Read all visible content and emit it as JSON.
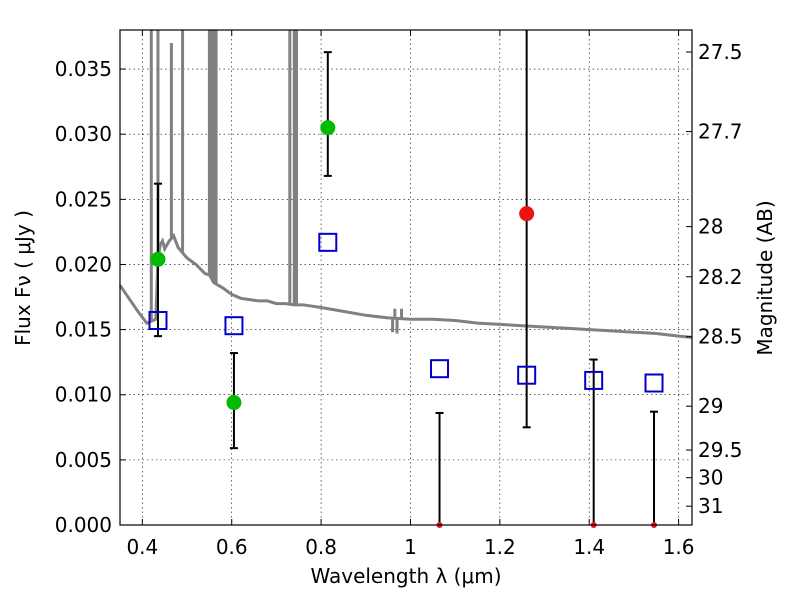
{
  "chart_data": {
    "type": "scatter",
    "xlabel": "Wavelength  λ (μm)",
    "ylabel": "Flux  Fν  ( μJy )",
    "y2label": "Magnitude (AB)",
    "xlim": [
      0.35,
      1.63
    ],
    "ylim": [
      0.0,
      0.038
    ],
    "grid": true,
    "xticks": [
      0.4,
      0.6,
      0.8,
      1.0,
      1.2,
      1.4,
      1.6
    ],
    "xtick_labels": [
      "0.4",
      "0.6",
      "0.8",
      "1",
      "1.2",
      "1.4",
      "1.6"
    ],
    "yticks": [
      0.0,
      0.005,
      0.01,
      0.015,
      0.02,
      0.025,
      0.03,
      0.035
    ],
    "ytick_labels": [
      "0.000",
      "0.005",
      "0.010",
      "0.015",
      "0.020",
      "0.025",
      "0.030",
      "0.035"
    ],
    "y2ticks": [
      27.5,
      27.7,
      28,
      28.2,
      28.5,
      29,
      29.5,
      30,
      31
    ],
    "y2tick_labels": [
      "27.5",
      "27.7",
      "28",
      "28.2",
      "28.5",
      "29",
      "29.5",
      "30",
      "31"
    ],
    "series": [
      {
        "kind": "template_sed",
        "color": "#808080",
        "x": [
          0.35,
          0.37,
          0.39,
          0.41,
          0.43,
          0.435,
          0.44,
          0.445,
          0.45,
          0.46,
          0.47,
          0.48,
          0.5,
          0.52,
          0.54,
          0.55,
          0.56,
          0.58,
          0.6,
          0.62,
          0.64,
          0.66,
          0.68,
          0.7,
          0.72,
          0.74,
          0.76,
          0.78,
          0.8,
          0.85,
          0.9,
          0.95,
          1.0,
          1.05,
          1.1,
          1.15,
          1.2,
          1.25,
          1.3,
          1.35,
          1.4,
          1.45,
          1.5,
          1.55,
          1.6,
          1.63
        ],
        "y": [
          0.0184,
          0.0174,
          0.0164,
          0.0155,
          0.0158,
          0.0205,
          0.0215,
          0.0218,
          0.0212,
          0.0218,
          0.0222,
          0.0213,
          0.0205,
          0.02,
          0.0193,
          0.0192,
          0.0186,
          0.0182,
          0.0177,
          0.0174,
          0.0173,
          0.0172,
          0.0172,
          0.017,
          0.017,
          0.0169,
          0.0169,
          0.0168,
          0.0167,
          0.0164,
          0.0161,
          0.0159,
          0.0158,
          0.0158,
          0.0157,
          0.0155,
          0.0154,
          0.0153,
          0.0152,
          0.0151,
          0.015,
          0.0149,
          0.0148,
          0.0147,
          0.0145,
          0.0144
        ]
      },
      {
        "kind": "emission_lines",
        "color": "#808080",
        "x": [
          0.42,
          0.435,
          0.465,
          0.49,
          0.55,
          0.555,
          0.56,
          0.565,
          0.73,
          0.74,
          0.745,
          0.96,
          0.965,
          0.97,
          0.98
        ],
        "y": [
          0.038,
          0.038,
          0.037,
          0.038,
          0.038,
          0.038,
          0.038,
          0.038,
          0.038,
          0.038,
          0.038,
          0.0148,
          0.0166,
          0.0147,
          0.0166
        ]
      },
      {
        "kind": "model_photometry",
        "color": "#0000cc",
        "marker": "open-square",
        "x": [
          0.435,
          0.605,
          0.815,
          1.065,
          1.26,
          1.41,
          1.545
        ],
        "y": [
          0.0157,
          0.0153,
          0.0217,
          0.012,
          0.0115,
          0.0111,
          0.0109
        ]
      },
      {
        "kind": "observed_detection",
        "color": "#00bb00",
        "marker": "filled-circle",
        "x": [
          0.435,
          0.605,
          0.815
        ],
        "y": [
          0.0204,
          0.0094,
          0.0305
        ],
        "err_low": [
          0.0145,
          0.0059,
          0.0268
        ],
        "err_high": [
          0.0262,
          0.0132,
          0.0363
        ]
      },
      {
        "kind": "observed_low_sn",
        "color": "#ee1111",
        "marker": "filled-circle",
        "x": [
          1.065,
          1.26,
          1.41,
          1.545
        ],
        "y": [
          0.0,
          0.0239,
          0.0,
          0.0
        ],
        "err_low": [
          0.0,
          0.0075,
          0.0,
          0.0
        ],
        "err_high": [
          0.0086,
          0.038,
          0.0127,
          0.0087
        ]
      }
    ]
  }
}
